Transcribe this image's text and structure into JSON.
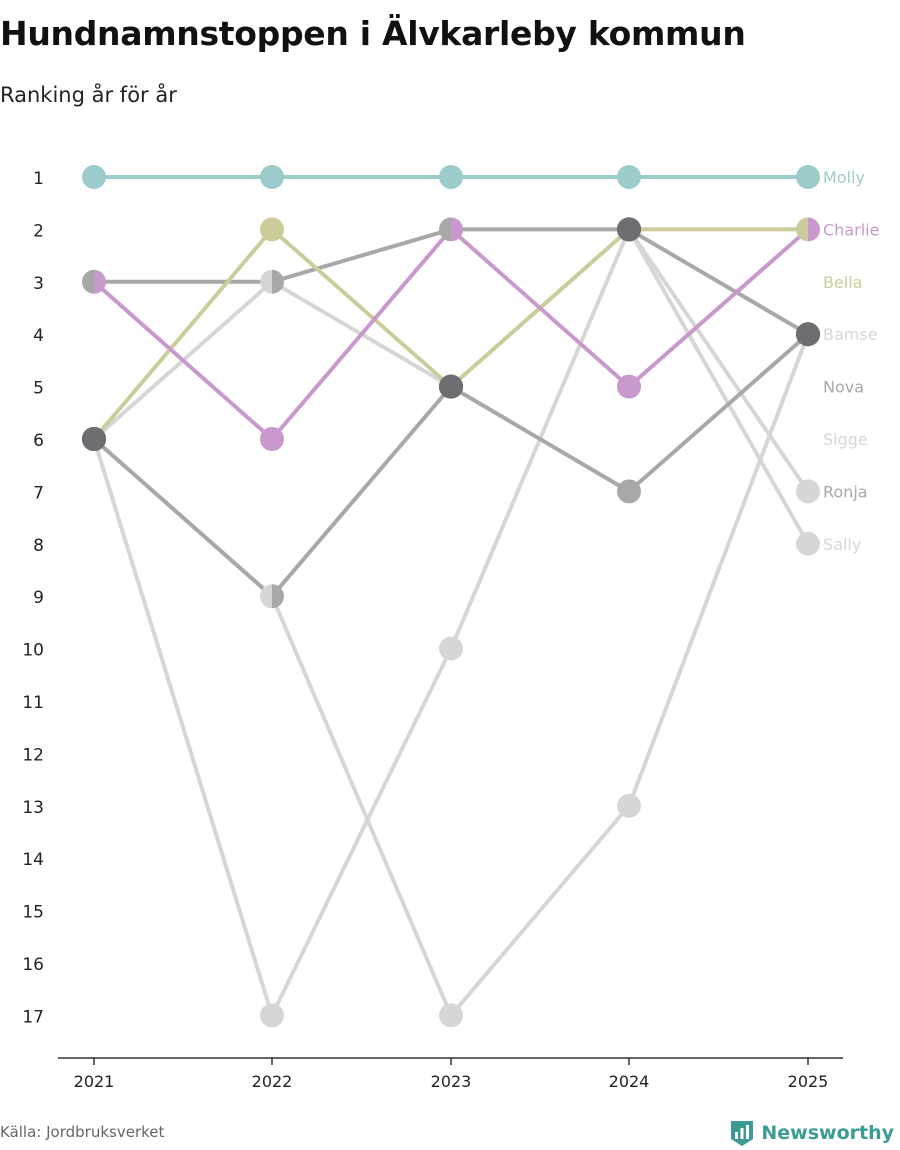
{
  "title": "Hundnamnstoppen i Älvkarleby kommun",
  "subtitle": "Ranking år för år",
  "source": "Källa: Jordbruksverket",
  "brand": {
    "name": "Newsworthy",
    "icon": "newsworthy-logo-icon",
    "color": "#3d9b96"
  },
  "chart_data": {
    "type": "line",
    "subtype": "bump",
    "categories": [
      "2021",
      "2022",
      "2023",
      "2024",
      "2025"
    ],
    "y_ticks": [
      "1",
      "2",
      "3",
      "4",
      "5",
      "6",
      "7",
      "8",
      "9",
      "10",
      "11",
      "12",
      "13",
      "14",
      "15",
      "16",
      "17"
    ],
    "ylim": [
      1,
      17
    ],
    "y_reversed": true,
    "series": [
      {
        "name": "Sally",
        "color": "#d6d6d6",
        "values": [
          6,
          3,
          5,
          2,
          8
        ]
      },
      {
        "name": "Ronja",
        "color": "#d6d6d6",
        "values": [
          6,
          17,
          10,
          2,
          7
        ]
      },
      {
        "name": "Sigge",
        "color": "#d6d6d6",
        "values": [
          6,
          9,
          17,
          13,
          4
        ]
      },
      {
        "name": "Nova",
        "color": "#a8a8a8",
        "values": [
          6,
          9,
          5,
          7,
          4
        ]
      },
      {
        "name": "Bamse",
        "color": "#a8a8a8",
        "values": [
          3,
          3,
          2,
          2,
          4
        ]
      },
      {
        "name": "Bella",
        "color": "#cccc9a",
        "values": [
          6,
          2,
          5,
          2,
          2
        ]
      },
      {
        "name": "Charlie",
        "color": "#c998cc",
        "values": [
          3,
          6,
          2,
          5,
          2
        ]
      },
      {
        "name": "Molly",
        "color": "#9ccbcb",
        "values": [
          1,
          1,
          1,
          1,
          1
        ]
      }
    ],
    "label_order": [
      "Molly",
      "Charlie",
      "Bella",
      "Bamse",
      "Nova",
      "Sigge",
      "Ronja",
      "Sally"
    ],
    "label_colors": {
      "Molly": "#9ccbcb",
      "Charlie": "#c998cc",
      "Bella": "#cccc9a",
      "Bamse": "#d6d6d6",
      "Nova": "#a8a8a8",
      "Sigge": "#d6d6d6",
      "Ronja": "#a8a8a8",
      "Sally": "#d6d6d6"
    },
    "overlap_color": "#6e6e72",
    "axis_color": "#333333",
    "tick_text_color": "#222222"
  }
}
